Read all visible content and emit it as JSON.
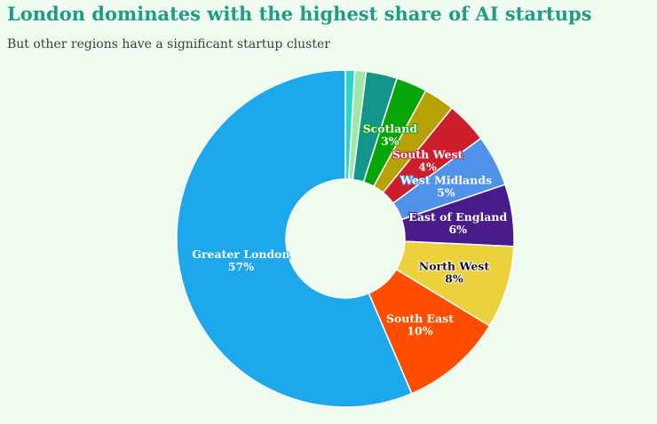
{
  "title": "London dominates with the highest share of AI startups",
  "subtitle": "But other regions have a significant startup cluster",
  "chart_data": {
    "type": "pie",
    "variant": "donut",
    "title": "London dominates with the highest share of AI startups",
    "subtitle": "But other regions have a significant startup cluster",
    "unit": "%",
    "start_angle_deg": 0,
    "direction": "clockwise",
    "slices": [
      {
        "label": "",
        "value": 0.9,
        "value_label": "",
        "color": "#29d5c8"
      },
      {
        "label": "",
        "value": 1.1,
        "value_label": "",
        "color": "#9fe8a6"
      },
      {
        "label": "",
        "value": 3.0,
        "value_label": "",
        "color": "#14958a"
      },
      {
        "label": "Scotland",
        "value": 3.0,
        "value_label": "3%",
        "color": "#08a508",
        "label_color": "#ffffff"
      },
      {
        "label": "",
        "value": 3.0,
        "value_label": "",
        "color": "#b8a106"
      },
      {
        "label": "South West",
        "value": 4.0,
        "value_label": "4%",
        "color": "#cc1f2b",
        "label_color": "#ffffff"
      },
      {
        "label": "West Midlands",
        "value": 5.0,
        "value_label": "5%",
        "color": "#4e92ea",
        "label_color": "#ffffff"
      },
      {
        "label": "East of England",
        "value": 6.0,
        "value_label": "6%",
        "color": "#4a1c8a",
        "label_color": "#ffffff"
      },
      {
        "label": "North West",
        "value": 8.0,
        "value_label": "8%",
        "color": "#ecd03c",
        "label_color": "#111111"
      },
      {
        "label": "South East",
        "value": 10.0,
        "value_label": "10%",
        "color": "#ff4e00",
        "label_color": "#ffffff"
      },
      {
        "label": "Greater London",
        "value": 57.0,
        "value_label": "57%",
        "color": "#1ea8ec",
        "label_color": "#ffffff"
      }
    ]
  }
}
